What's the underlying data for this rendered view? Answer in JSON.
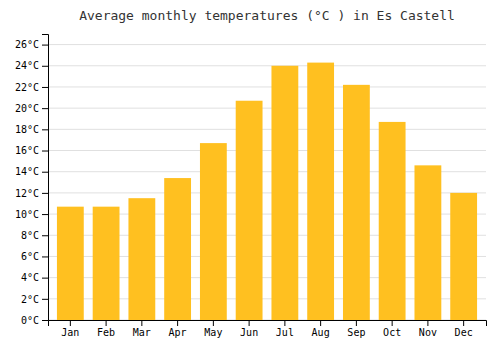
{
  "chart_data": {
    "type": "bar",
    "title": "Average monthly temperatures (°C ) in Es Castell",
    "categories": [
      "Jan",
      "Feb",
      "Mar",
      "Apr",
      "May",
      "Jun",
      "Jul",
      "Aug",
      "Sep",
      "Oct",
      "Nov",
      "Dec"
    ],
    "values": [
      10.7,
      10.7,
      11.5,
      13.4,
      16.7,
      20.7,
      24.0,
      24.3,
      22.2,
      18.7,
      14.6,
      12.0
    ],
    "color": "#FFC020",
    "ylim": [
      0,
      27
    ],
    "yticks": [
      {
        "value": 0,
        "label": "0°C"
      },
      {
        "value": 2,
        "label": "2°C"
      },
      {
        "value": 4,
        "label": "4°C"
      },
      {
        "value": 6,
        "label": "6°C"
      },
      {
        "value": 8,
        "label": "8°C"
      },
      {
        "value": 10,
        "label": "10°C"
      },
      {
        "value": 12,
        "label": "12°C"
      },
      {
        "value": 14,
        "label": "14°C"
      },
      {
        "value": 16,
        "label": "16°C"
      },
      {
        "value": 18,
        "label": "18°C"
      },
      {
        "value": 20,
        "label": "20°C"
      },
      {
        "value": 22,
        "label": "22°C"
      },
      {
        "value": 24,
        "label": "24°C"
      },
      {
        "value": 26,
        "label": "26°C"
      }
    ],
    "grid": true
  }
}
